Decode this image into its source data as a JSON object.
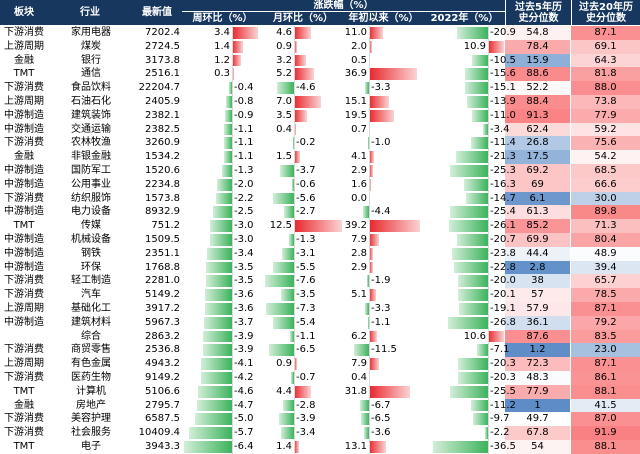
{
  "header": {
    "sector": "板块",
    "industry": "行业",
    "latest": "最新值",
    "change_group": "涨跌幅（%）",
    "wow": "周环比（%）",
    "mom": "月环比（%）",
    "ytd": "年初以来（%）",
    "y2022": "2022年（%）",
    "pct5": "过去5年历史分位数",
    "pct20": "过去20年历史分位数"
  },
  "colors": {
    "header_bg": "#17375e",
    "bar_positive": "#e8262b",
    "bar_negative": "#3cb35c",
    "percentile_high": "#f8696b",
    "percentile_low": "#5a8ac6"
  },
  "rows": [
    {
      "sector": "下游消费",
      "industry": "家用电器",
      "latest": "7202.4",
      "wow": "3.4",
      "mom": "4.6",
      "ytd": "11.0",
      "y2022": "-20.9",
      "pct5": "54.8",
      "pct20": "87.1"
    },
    {
      "sector": "上游周期",
      "industry": "煤炭",
      "latest": "2724.5",
      "wow": "1.4",
      "mom": "0.9",
      "ytd": "2.0",
      "y2022": "10.9",
      "pct5": "78.4",
      "pct20": "69.1"
    },
    {
      "sector": "金融",
      "industry": "银行",
      "latest": "3173.8",
      "wow": "1.2",
      "mom": "3.2",
      "ytd": "0.5",
      "y2022": "-10.5",
      "pct5": "15.9",
      "pct20": "64.3"
    },
    {
      "sector": "TMT",
      "industry": "通信",
      "latest": "2516.1",
      "wow": "0.3",
      "mom": "5.2",
      "ytd": "36.9",
      "y2022": "-15.6",
      "pct5": "88.6",
      "pct20": "81.8"
    },
    {
      "sector": "下游消费",
      "industry": "食品饮料",
      "latest": "22204.7",
      "wow": "-0.4",
      "mom": "-4.6",
      "ytd": "-3.3",
      "y2022": "-15.1",
      "pct5": "52.2",
      "pct20": "88.0"
    },
    {
      "sector": "上游周期",
      "industry": "石油石化",
      "latest": "2405.9",
      "wow": "-0.8",
      "mom": "7.0",
      "ytd": "15.1",
      "y2022": "-13.9",
      "pct5": "88.4",
      "pct20": "73.8"
    },
    {
      "sector": "中游制造",
      "industry": "建筑装饰",
      "latest": "2382.1",
      "wow": "-0.9",
      "mom": "3.5",
      "ytd": "19.5",
      "y2022": "-11.0",
      "pct5": "91.3",
      "pct20": "77.9"
    },
    {
      "sector": "中游制造",
      "industry": "交通运输",
      "latest": "2382.5",
      "wow": "-1.1",
      "mom": "0.4",
      "ytd": "0.7",
      "y2022": "-3.4",
      "pct5": "62.4",
      "pct20": "59.2"
    },
    {
      "sector": "下游消费",
      "industry": "农林牧渔",
      "latest": "3260.9",
      "wow": "-1.1",
      "mom": "-0.2",
      "ytd": "-1.0",
      "y2022": "-11.4",
      "pct5": "26.8",
      "pct20": "75.6"
    },
    {
      "sector": "金融",
      "industry": "非银金融",
      "latest": "1534.2",
      "wow": "-1.1",
      "mom": "1.5",
      "ytd": "4.1",
      "y2022": "-21.3",
      "pct5": "17.5",
      "pct20": "54.2"
    },
    {
      "sector": "中游制造",
      "industry": "国防军工",
      "latest": "1520.6",
      "wow": "-1.3",
      "mom": "-3.7",
      "ytd": "2.9",
      "y2022": "-25.3",
      "pct5": "69.2",
      "pct20": "68.5"
    },
    {
      "sector": "中游制造",
      "industry": "公用事业",
      "latest": "2234.8",
      "wow": "-2.0",
      "mom": "-0.6",
      "ytd": "1.6",
      "y2022": "-16.3",
      "pct5": "69",
      "pct20": "66.6"
    },
    {
      "sector": "下游消费",
      "industry": "纺织服饰",
      "latest": "1573.8",
      "wow": "-2.2",
      "mom": "-5.6",
      "ytd": "0.0",
      "y2022": "-14.7",
      "pct5": "6.1",
      "pct20": "30.0"
    },
    {
      "sector": "中游制造",
      "industry": "电力设备",
      "latest": "8932.9",
      "wow": "-2.5",
      "mom": "-2.7",
      "ytd": "-4.4",
      "y2022": "-25.4",
      "pct5": "61.3",
      "pct20": "89.8"
    },
    {
      "sector": "TMT",
      "industry": "传媒",
      "latest": "751.2",
      "wow": "-3.0",
      "mom": "12.5",
      "ytd": "39.2",
      "y2022": "-26.1",
      "pct5": "85.2",
      "pct20": "71.3"
    },
    {
      "sector": "中游制造",
      "industry": "机械设备",
      "latest": "1509.5",
      "wow": "-3.0",
      "mom": "-1.3",
      "ytd": "7.9",
      "y2022": "-20.7",
      "pct5": "69.9",
      "pct20": "80.4"
    },
    {
      "sector": "中游制造",
      "industry": "钢铁",
      "latest": "2351.1",
      "wow": "-3.4",
      "mom": "-3.1",
      "ytd": "2.8",
      "y2022": "-23.8",
      "pct5": "44.4",
      "pct20": "48.9"
    },
    {
      "sector": "中游制造",
      "industry": "环保",
      "latest": "1768.8",
      "wow": "-3.5",
      "mom": "-5.5",
      "ytd": "2.9",
      "y2022": "-22.8",
      "pct5": "2.8",
      "pct20": "39.4"
    },
    {
      "sector": "下游消费",
      "industry": "轻工制造",
      "latest": "2281.0",
      "wow": "-3.5",
      "mom": "-7.6",
      "ytd": "-1.9",
      "y2022": "-20.0",
      "pct5": "38",
      "pct20": "65.7"
    },
    {
      "sector": "下游消费",
      "industry": "汽车",
      "latest": "5149.2",
      "wow": "-3.6",
      "mom": "-3.5",
      "ytd": "5.1",
      "y2022": "-20.1",
      "pct5": "57",
      "pct20": "78.5"
    },
    {
      "sector": "上游周期",
      "industry": "基础化工",
      "latest": "3917.2",
      "wow": "-3.6",
      "mom": "-7.3",
      "ytd": "-3.3",
      "y2022": "-19.1",
      "pct5": "57.9",
      "pct20": "87.1"
    },
    {
      "sector": "中游制造",
      "industry": "建筑材料",
      "latest": "5967.3",
      "wow": "-3.7",
      "mom": "-5.4",
      "ytd": "-1.1",
      "y2022": "-26.8",
      "pct5": "36.1",
      "pct20": "79.2"
    },
    {
      "sector": "",
      "industry": "综合",
      "latest": "2863.2",
      "wow": "-3.9",
      "mom": "-1.1",
      "ytd": "6.2",
      "y2022": "10.6",
      "pct5": "87.6",
      "pct20": "83.5"
    },
    {
      "sector": "下游消费",
      "industry": "商贸零售",
      "latest": "2536.8",
      "wow": "-3.9",
      "mom": "-6.5",
      "ytd": "-11.5",
      "y2022": "-7.1",
      "pct5": "1.2",
      "pct20": "23.0"
    },
    {
      "sector": "上游周期",
      "industry": "有色金属",
      "latest": "4943.2",
      "wow": "-4.1",
      "mom": "0.9",
      "ytd": "7.9",
      "y2022": "-20.3",
      "pct5": "72.3",
      "pct20": "87.1"
    },
    {
      "sector": "下游消费",
      "industry": "医药生物",
      "latest": "9149.2",
      "wow": "-4.2",
      "mom": "-0.7",
      "ytd": "0.4",
      "y2022": "-20.3",
      "pct5": "48.3",
      "pct20": "86.1"
    },
    {
      "sector": "TMT",
      "industry": "计算机",
      "latest": "5106.6",
      "wow": "-4.6",
      "mom": "4.4",
      "ytd": "31.8",
      "y2022": "-25.5",
      "pct5": "77.9",
      "pct20": "88.1"
    },
    {
      "sector": "金融",
      "industry": "房地产",
      "latest": "2795.7",
      "wow": "-4.7",
      "mom": "-2.8",
      "ytd": "-6.7",
      "y2022": "-11.2",
      "pct5": "1",
      "pct20": "41.5"
    },
    {
      "sector": "下游消费",
      "industry": "美容护理",
      "latest": "6587.5",
      "wow": "-5.0",
      "mom": "-3.9",
      "ytd": "-6.5",
      "y2022": "-9.7",
      "pct5": "49.7",
      "pct20": "87.0"
    },
    {
      "sector": "下游消费",
      "industry": "社会服务",
      "latest": "10409.4",
      "wow": "-5.7",
      "mom": "-3.4",
      "ytd": "-3.6",
      "y2022": "-2.2",
      "pct5": "67.8",
      "pct20": "91.9"
    },
    {
      "sector": "TMT",
      "industry": "电子",
      "latest": "3943.3",
      "wow": "-6.4",
      "mom": "1.4",
      "ytd": "13.1",
      "y2022": "-36.5",
      "pct5": "54",
      "pct20": "88.1"
    }
  ]
}
